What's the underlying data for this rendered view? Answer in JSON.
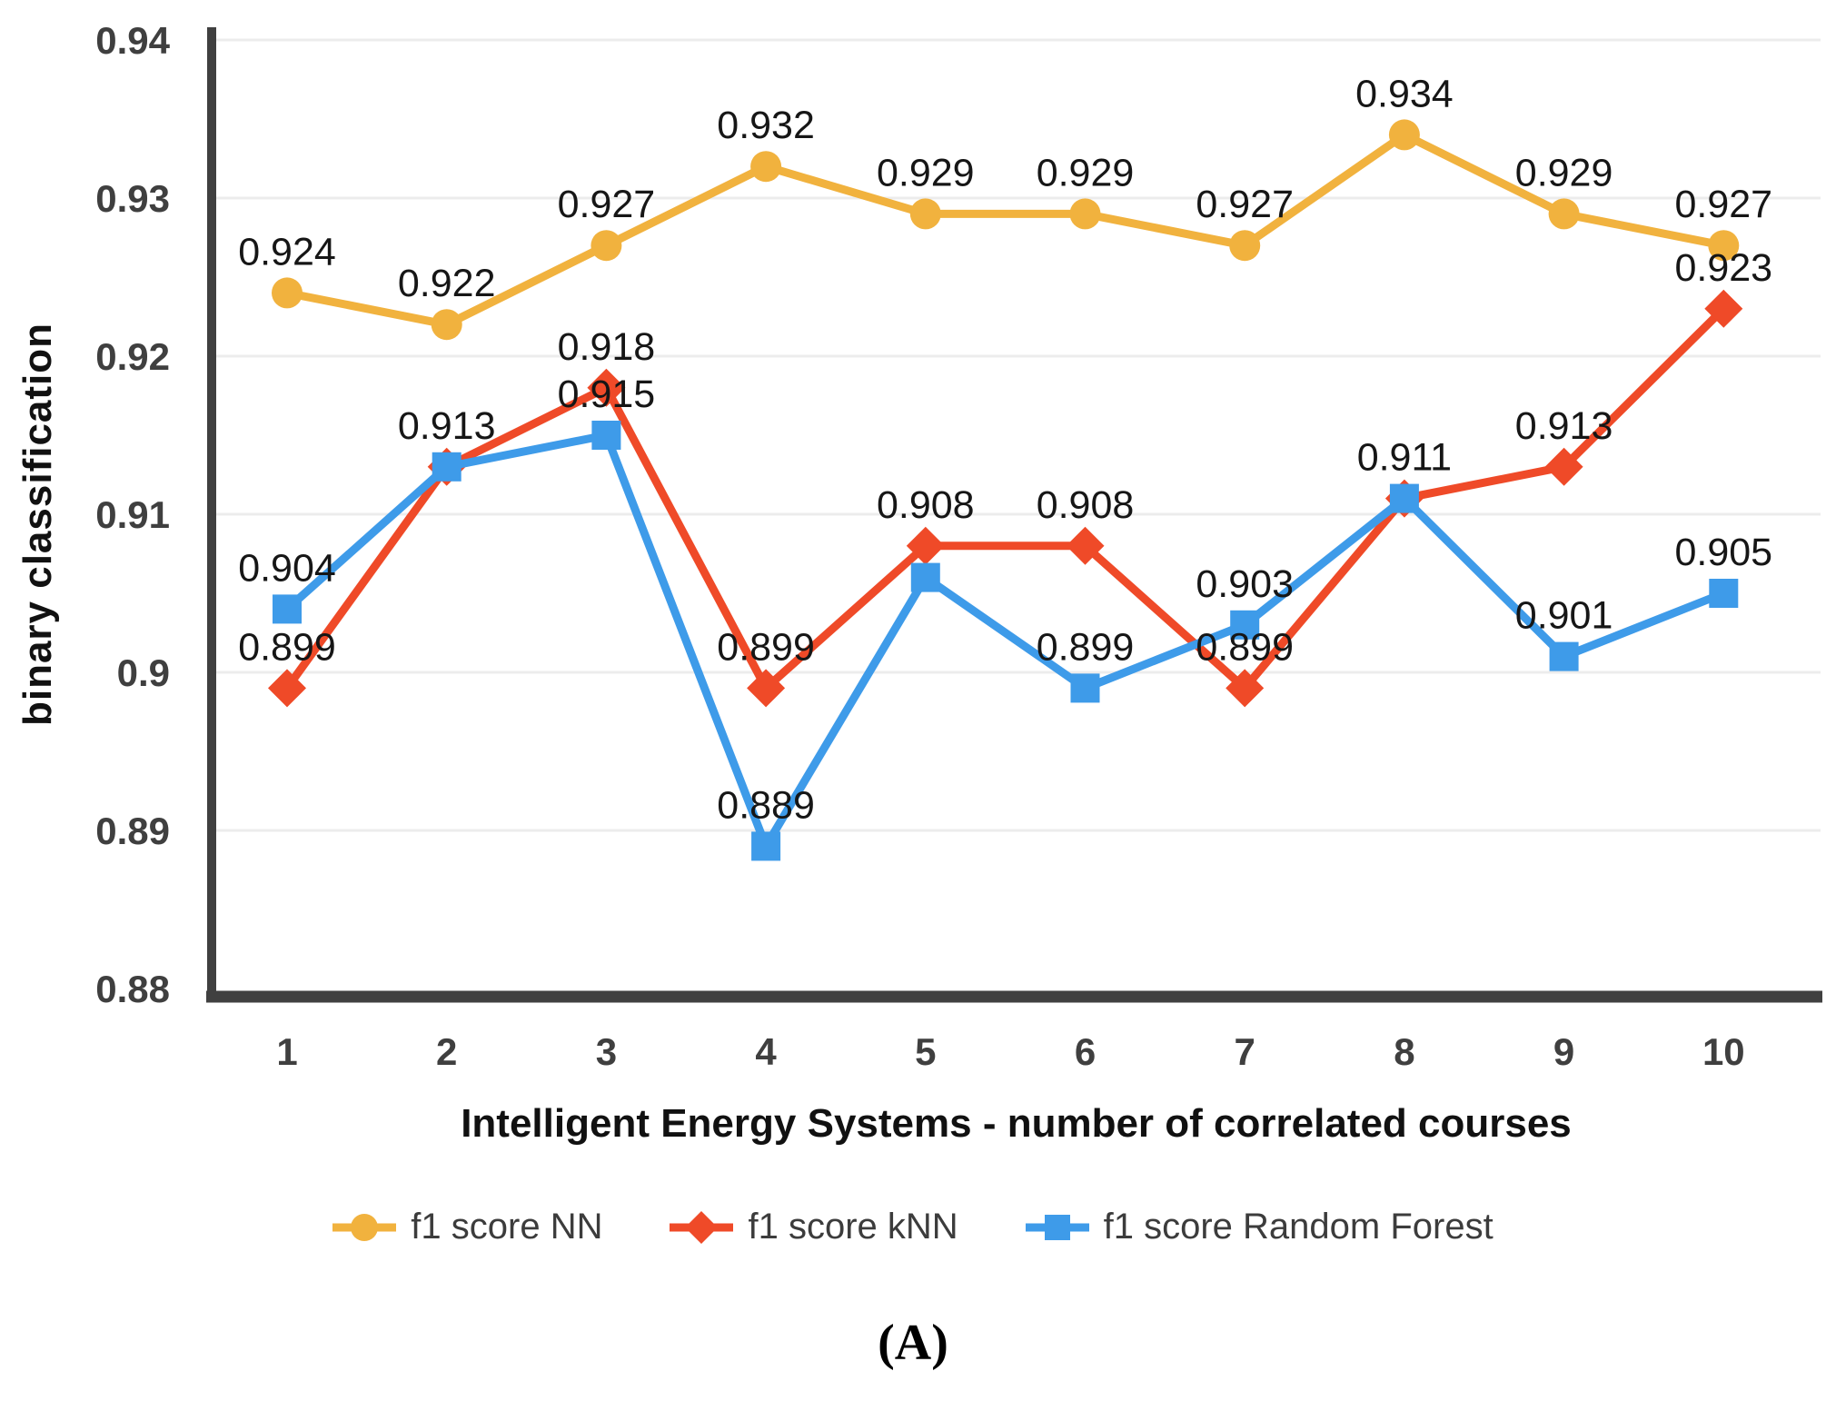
{
  "figure": {
    "caption": "(A)",
    "x_axis": {
      "title": "Intelligent Energy Systems - number of correlated courses",
      "tick_labels": [
        "1",
        "2",
        "3",
        "4",
        "5",
        "6",
        "7",
        "8",
        "9",
        "10"
      ]
    },
    "y_axis": {
      "title": "binary classification",
      "tick_labels": [
        "0.94",
        "0.93",
        "0.92",
        "0.91",
        "0.9",
        "0.89",
        "0.88"
      ],
      "tick_values": [
        0.94,
        0.93,
        0.92,
        0.91,
        0.9,
        0.89,
        0.88
      ]
    }
  },
  "chart_data": {
    "type": "line",
    "title": "",
    "xlabel": "Intelligent Energy Systems - number of correlated courses",
    "ylabel": "binary classification",
    "x": [
      1,
      2,
      3,
      4,
      5,
      6,
      7,
      8,
      9,
      10
    ],
    "ylim": [
      0.88,
      0.94
    ],
    "grid": true,
    "legend_position": "bottom",
    "series": [
      {
        "name": "f1 score NN",
        "color": "#F1B23E",
        "marker": "circle",
        "values": [
          0.924,
          0.922,
          0.927,
          0.932,
          0.929,
          0.929,
          0.927,
          0.934,
          0.929,
          0.927
        ],
        "point_labels": [
          "0.924",
          "0.922",
          "0.927",
          "0.932",
          "0.929",
          "0.929",
          "0.927",
          "0.934",
          "0.929",
          "0.927"
        ]
      },
      {
        "name": "f1 score kNN",
        "color": "#EF4A28",
        "marker": "diamond",
        "values": [
          0.899,
          0.913,
          0.918,
          0.899,
          0.908,
          0.908,
          0.899,
          0.911,
          0.913,
          0.923
        ],
        "point_labels": [
          "0.899",
          null,
          "0.918",
          "0.899",
          "0.908",
          "0.908",
          "0.899",
          null,
          "0.913",
          "0.923"
        ]
      },
      {
        "name": "f1 score Random Forest",
        "color": "#3E9BE9",
        "marker": "square",
        "values": [
          0.904,
          0.913,
          0.915,
          0.889,
          0.906,
          0.899,
          0.903,
          0.911,
          0.901,
          0.905
        ],
        "point_labels": [
          "0.904",
          "0.913",
          "0.915",
          "0.889",
          null,
          "0.899",
          "0.903",
          "0.911",
          "0.901",
          "0.905"
        ]
      }
    ]
  },
  "colors": {
    "gridline": "#ECECEC",
    "axis": "#404040",
    "tick_text": "#3F3F3F",
    "point_label_text": "#161616",
    "legend_text": "#3C3C3C"
  }
}
